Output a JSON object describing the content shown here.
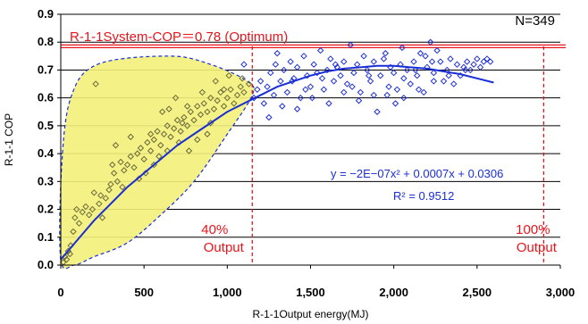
{
  "chart_data": {
    "type": "scatter",
    "xlabel": "R-1-1Output energy(MJ)",
    "ylabel": "R-1-1 COP",
    "xlim": [
      0,
      3000
    ],
    "ylim": [
      0.0,
      0.9
    ],
    "x_ticks": [
      0,
      500,
      1000,
      1500,
      2000,
      2500,
      3000
    ],
    "x_tick_labels": [
      "0",
      "500",
      "1,000",
      "1,500",
      "2,000",
      "2,500",
      "3,000"
    ],
    "y_ticks": [
      0.0,
      0.1,
      0.2,
      0.3,
      0.4,
      0.5,
      0.6,
      0.7,
      0.8,
      0.9
    ],
    "y_tick_labels": [
      "0.0",
      "0.1",
      "0.2",
      "0.3",
      "0.4",
      "0.5",
      "0.6",
      "0.7",
      "0.8",
      "0.9"
    ],
    "grid": "horizontal",
    "colors": {
      "scatter_low": "#6b6b3a",
      "scatter_high": "#1a2ed6",
      "fit": "#1a2ed6",
      "reference": "#e8141b",
      "region_fill": "#f3ef7a",
      "region_edge": "#1a2ed6"
    },
    "annotations": {
      "optimum_line": {
        "y": 0.785,
        "label": "R-1-1System-COP＝0.78 (Optimum)"
      },
      "sample_count": "N=349",
      "vline_40": {
        "x": 1150,
        "label_top": "40%",
        "label_bottom": "Output"
      },
      "vline_100": {
        "x": 2900,
        "label_top": "100%",
        "label_bottom": "Output"
      },
      "equation": "y = −2E−07x² + 0.0007x + 0.0306",
      "r2_label": "R² = 0.9512"
    },
    "fit_curve": {
      "name": "y = -2E-07x^2 + 0.0007x + 0.0306",
      "x": [
        0,
        100,
        200,
        300,
        400,
        500,
        600,
        700,
        800,
        900,
        1000,
        1100,
        1200,
        1300,
        1400,
        1500,
        1600,
        1700,
        1800,
        1900,
        2000,
        2100,
        2200,
        2300,
        2400,
        2500,
        2600
      ],
      "y": [
        0.02,
        0.09,
        0.16,
        0.22,
        0.28,
        0.33,
        0.38,
        0.43,
        0.47,
        0.51,
        0.55,
        0.58,
        0.61,
        0.64,
        0.66,
        0.68,
        0.695,
        0.705,
        0.71,
        0.715,
        0.715,
        0.71,
        0.705,
        0.695,
        0.685,
        0.67,
        0.655
      ]
    },
    "series": [
      {
        "group": "low-output",
        "points": [
          [
            15,
            0.01
          ],
          [
            25,
            0.03
          ],
          [
            35,
            0.02
          ],
          [
            45,
            0.05
          ],
          [
            55,
            0.04
          ],
          [
            60,
            0.07
          ],
          [
            75,
            0.12
          ],
          [
            85,
            0.17
          ],
          [
            95,
            0.2
          ],
          [
            110,
            0.15
          ],
          [
            130,
            0.19
          ],
          [
            150,
            0.21
          ],
          [
            170,
            0.18
          ],
          [
            190,
            0.2
          ],
          [
            200,
            0.26
          ],
          [
            210,
            0.65
          ],
          [
            230,
            0.22
          ],
          [
            250,
            0.17
          ],
          [
            270,
            0.24
          ],
          [
            290,
            0.27
          ],
          [
            300,
            0.29
          ],
          [
            320,
            0.33
          ],
          [
            340,
            0.3
          ],
          [
            360,
            0.37
          ],
          [
            380,
            0.34
          ],
          [
            400,
            0.36
          ],
          [
            420,
            0.39
          ],
          [
            440,
            0.35
          ],
          [
            460,
            0.4
          ],
          [
            480,
            0.42
          ],
          [
            500,
            0.38
          ],
          [
            520,
            0.44
          ],
          [
            540,
            0.41
          ],
          [
            560,
            0.45
          ],
          [
            580,
            0.48
          ],
          [
            600,
            0.43
          ],
          [
            620,
            0.47
          ],
          [
            640,
            0.5
          ],
          [
            650,
            0.56
          ],
          [
            660,
            0.46
          ],
          [
            680,
            0.49
          ],
          [
            700,
            0.52
          ],
          [
            720,
            0.48
          ],
          [
            740,
            0.53
          ],
          [
            760,
            0.5
          ],
          [
            780,
            0.55
          ],
          [
            800,
            0.52
          ],
          [
            820,
            0.57
          ],
          [
            840,
            0.54
          ],
          [
            860,
            0.58
          ],
          [
            880,
            0.55
          ],
          [
            900,
            0.6
          ],
          [
            920,
            0.56
          ],
          [
            940,
            0.59
          ],
          [
            960,
            0.62
          ],
          [
            980,
            0.57
          ],
          [
            1000,
            0.6
          ],
          [
            1020,
            0.63
          ],
          [
            1040,
            0.58
          ],
          [
            1060,
            0.61
          ],
          [
            1080,
            0.64
          ],
          [
            1100,
            0.62
          ],
          [
            1130,
            0.65
          ],
          [
            330,
            0.43
          ],
          [
            420,
            0.46
          ],
          [
            510,
            0.33
          ],
          [
            590,
            0.39
          ],
          [
            710,
            0.44
          ],
          [
            770,
            0.41
          ],
          [
            880,
            0.47
          ],
          [
            560,
            0.36
          ],
          [
            690,
            0.6
          ],
          [
            850,
            0.62
          ],
          [
            930,
            0.66
          ],
          [
            1010,
            0.68
          ],
          [
            760,
            0.57
          ],
          [
            470,
            0.31
          ],
          [
            370,
            0.28
          ],
          [
            310,
            0.36
          ],
          [
            240,
            0.25
          ],
          [
            610,
            0.55
          ],
          [
            730,
            0.51
          ],
          [
            820,
            0.45
          ],
          [
            900,
            0.51
          ],
          [
            980,
            0.63
          ],
          [
            1090,
            0.67
          ],
          [
            640,
            0.41
          ],
          [
            540,
            0.47
          ]
        ]
      },
      {
        "group": "high-output",
        "points": [
          [
            1100,
            0.72
          ],
          [
            1160,
            0.6
          ],
          [
            1180,
            0.63
          ],
          [
            1200,
            0.66
          ],
          [
            1220,
            0.58
          ],
          [
            1240,
            0.64
          ],
          [
            1260,
            0.69
          ],
          [
            1280,
            0.61
          ],
          [
            1300,
            0.76
          ],
          [
            1320,
            0.66
          ],
          [
            1340,
            0.7
          ],
          [
            1360,
            0.62
          ],
          [
            1380,
            0.73
          ],
          [
            1400,
            0.67
          ],
          [
            1420,
            0.71
          ],
          [
            1440,
            0.6
          ],
          [
            1460,
            0.75
          ],
          [
            1480,
            0.68
          ],
          [
            1500,
            0.64
          ],
          [
            1520,
            0.72
          ],
          [
            1540,
            0.69
          ],
          [
            1560,
            0.77
          ],
          [
            1580,
            0.63
          ],
          [
            1600,
            0.7
          ],
          [
            1620,
            0.74
          ],
          [
            1640,
            0.66
          ],
          [
            1660,
            0.71
          ],
          [
            1680,
            0.68
          ],
          [
            1700,
            0.73
          ],
          [
            1720,
            0.65
          ],
          [
            1740,
            0.79
          ],
          [
            1760,
            0.69
          ],
          [
            1780,
            0.72
          ],
          [
            1800,
            0.62
          ],
          [
            1820,
            0.75
          ],
          [
            1840,
            0.7
          ],
          [
            1860,
            0.66
          ],
          [
            1880,
            0.73
          ],
          [
            1900,
            0.55
          ],
          [
            1920,
            0.68
          ],
          [
            1940,
            0.74
          ],
          [
            1960,
            0.61
          ],
          [
            1980,
            0.71
          ],
          [
            2000,
            0.69
          ],
          [
            2020,
            0.63
          ],
          [
            2040,
            0.72
          ],
          [
            2060,
            0.67
          ],
          [
            2080,
            0.7
          ],
          [
            2100,
            0.65
          ],
          [
            2120,
            0.73
          ],
          [
            2140,
            0.68
          ],
          [
            2160,
            0.76
          ],
          [
            2180,
            0.62
          ],
          [
            2200,
            0.71
          ],
          [
            2220,
            0.8
          ],
          [
            2240,
            0.69
          ],
          [
            2260,
            0.77
          ],
          [
            2280,
            0.73
          ],
          [
            2300,
            0.66
          ],
          [
            2320,
            0.7
          ],
          [
            2340,
            0.74
          ],
          [
            2360,
            0.65
          ],
          [
            2380,
            0.72
          ],
          [
            2400,
            0.68
          ],
          [
            2420,
            0.71
          ],
          [
            2440,
            0.73
          ],
          [
            2460,
            0.7
          ],
          [
            2480,
            0.72
          ],
          [
            2500,
            0.74
          ],
          [
            2520,
            0.71
          ],
          [
            2540,
            0.73
          ],
          [
            2560,
            0.74
          ],
          [
            2580,
            0.73
          ],
          [
            1250,
            0.53
          ],
          [
            1330,
            0.57
          ],
          [
            1420,
            0.56
          ],
          [
            1510,
            0.6
          ],
          [
            1610,
            0.58
          ],
          [
            1700,
            0.62
          ],
          [
            1790,
            0.59
          ],
          [
            1880,
            0.61
          ],
          [
            1970,
            0.64
          ],
          [
            2060,
            0.6
          ],
          [
            2150,
            0.63
          ],
          [
            2240,
            0.66
          ],
          [
            1290,
            0.72
          ],
          [
            1390,
            0.66
          ],
          [
            1470,
            0.63
          ],
          [
            1570,
            0.67
          ],
          [
            1650,
            0.72
          ],
          [
            1750,
            0.64
          ],
          [
            1850,
            0.68
          ],
          [
            1950,
            0.76
          ],
          [
            2050,
            0.78
          ],
          [
            2130,
            0.7
          ],
          [
            2230,
            0.73
          ],
          [
            2330,
            0.68
          ],
          [
            2430,
            0.7
          ],
          [
            2010,
            0.58
          ],
          [
            2190,
            0.75
          ]
        ]
      }
    ]
  }
}
